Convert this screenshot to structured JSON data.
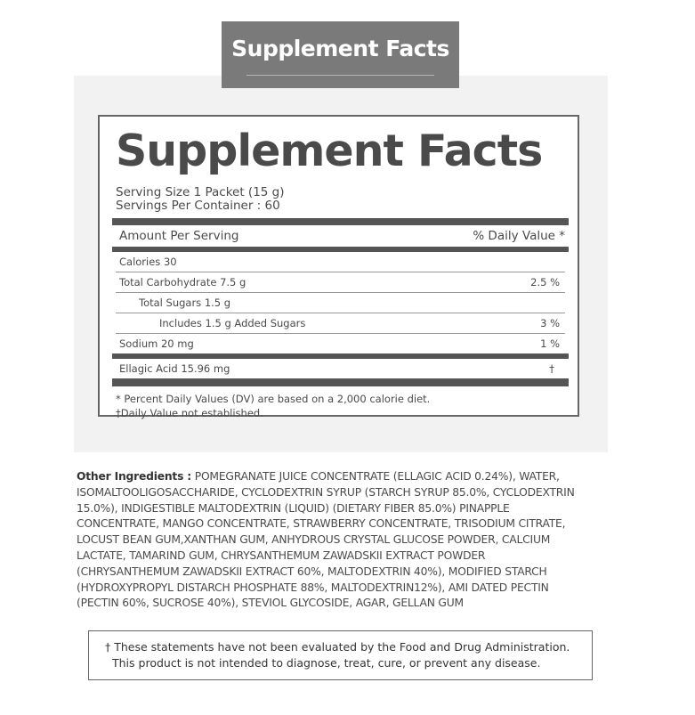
{
  "header": {
    "title": "Supplement Facts"
  },
  "label": {
    "title": "Supplement Facts",
    "serving_size": "Serving Size  1 Packet (15 g)",
    "servings_per_container": "Servings Per Container : 60",
    "amount_per_serving": "Amount Per Serving",
    "daily_value_header": "% Daily Value *",
    "rows": [
      {
        "name": "Calories  30",
        "dv": ""
      },
      {
        "name": "Total Carbohydrate  7.5 g",
        "dv": "2.5 %"
      },
      {
        "name": "Total Sugars  1.5 g",
        "dv": ""
      },
      {
        "name": "Includes  1.5 g  Added Sugars",
        "dv": "3 %"
      },
      {
        "name": "Sodium  20 mg",
        "dv": "1 %"
      }
    ],
    "ellagic": {
      "name": "Ellagic Acid  15.96 mg",
      "dv": "†"
    },
    "footnote1": "* Percent Daily Values (DV) are based on a 2,000 calorie diet.",
    "footnote2": "†Daily Value not established."
  },
  "ingredients": {
    "label": "Other Ingredients :",
    "text": " POMEGRANATE JUICE CONCENTRATE (ELLAGIC ACID 0.24%), WATER, ISOMALTOOLIGOSACCHARIDE, CYCLODEXTRIN SYRUP (STARCH SYRUP 85.0%, CYCLODEXTRIN 15.0%), INDIGESTIBLE MALTODEXTRIN (LIQUID) (DIETARY FIBER 85.0%) PINAPPLE CONCENTRATE, MANGO CONCENTRATE, STRAWBERRY CONCENTRATE, TRISODIUM CITRATE, LOCUST BEAN GUM,XANTHAN GUM, ANHYDROUS CRYSTAL GLUCOSE POWDER, CALCIUM LACTATE, TAMARIND GUM, CHRYSANTHEMUM ZAWADSKII EXTRACT POWDER (CHRYSANTHEMUM ZAWADSKII EXTRACT 60%, MALTODEXTRIN 40%), MODIFIED STARCH (HYDROXYPROPYL DISTARCH PHOSPHATE 88%, MALTODEXTRIN12%), AMI DATED PECTIN (PECTIN 60%, SUCROSE 40%), STEVIOL GLYCOSIDE, AGAR, GELLAN GUM"
  },
  "disclaimer": {
    "line1": "† These statements have not been evaluated by the Food and Drug Administration.",
    "line2": "This product is not intended to diagnose, treat, cure, or prevent any disease."
  }
}
